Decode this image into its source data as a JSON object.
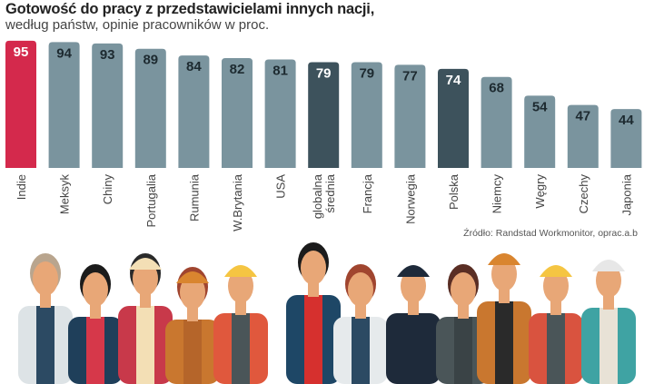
{
  "chart_data": {
    "type": "bar",
    "title": "Gotowość do pracy z przedstawicielami innych nacji,",
    "subtitle": "według państw, opinie pracowników w proc.",
    "categories": [
      "Indie",
      "Meksyk",
      "Chiny",
      "Portugalia",
      "Rumunia",
      "W.Brytania",
      "USA",
      "globalna średnia",
      "Francja",
      "Norwegia",
      "Polska",
      "Niemcy",
      "Węgry",
      "Czechy",
      "Japonia"
    ],
    "values": [
      95,
      94,
      93,
      89,
      84,
      82,
      81,
      79,
      79,
      77,
      74,
      68,
      54,
      47,
      44
    ],
    "highlight": {
      "Indie": "#d4294c",
      "globalna średnia": "#3d525c",
      "Polska": "#3d525c"
    },
    "colors": {
      "default": "#7a949e",
      "highlight_red": "#d4294c",
      "highlight_dark": "#3d525c",
      "label_dark": "#1d2a30",
      "label_light": "#ffffff"
    },
    "ylim": [
      0,
      100
    ],
    "grid": false,
    "legend": "none",
    "source": "Źródło: Randstad Workmonitor, oprac.a.b"
  }
}
